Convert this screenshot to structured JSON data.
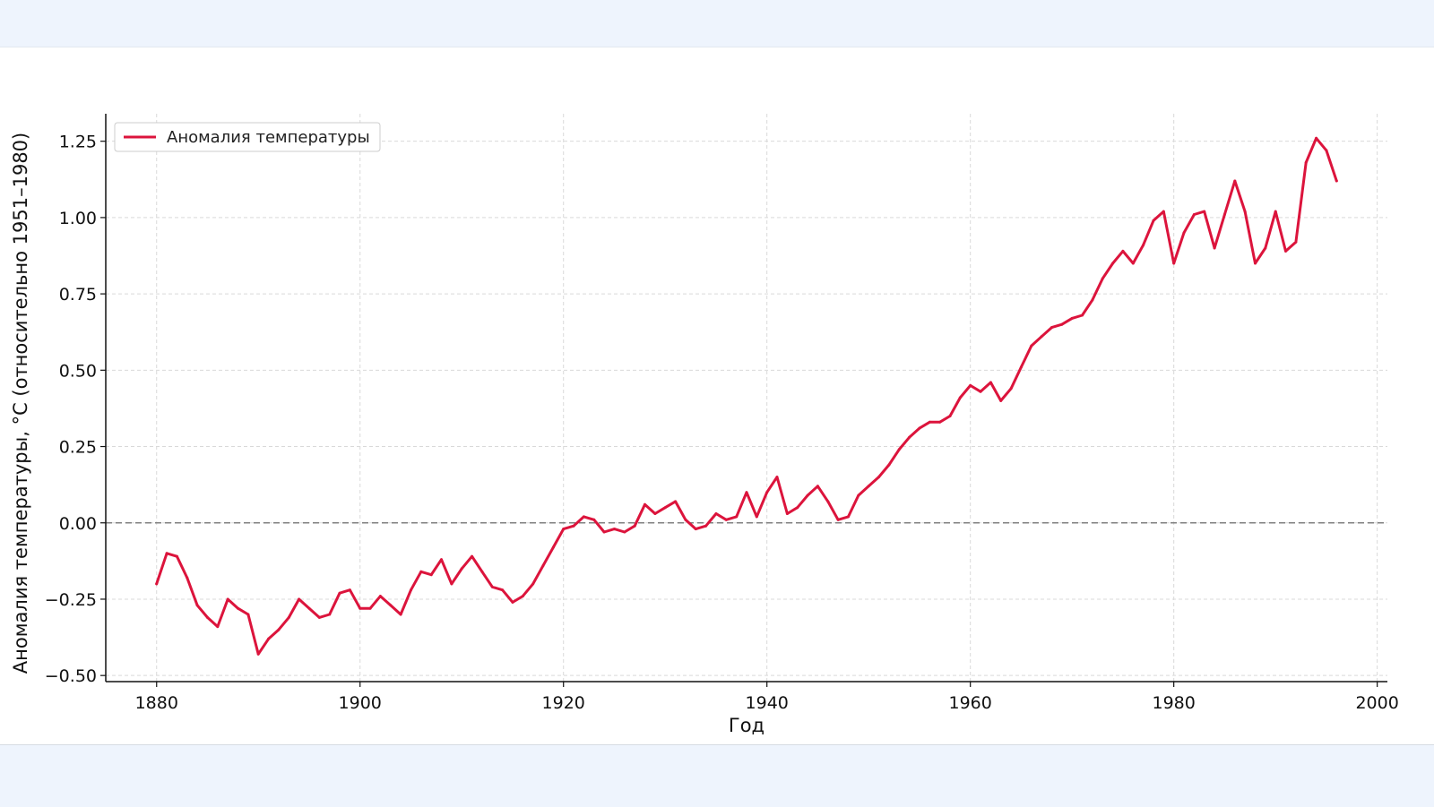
{
  "chart_data": {
    "type": "line",
    "xlabel": "Год",
    "ylabel": "Аномалия температуры, °C (относительно 1951–1980)",
    "xlim": [
      1875,
      2001
    ],
    "ylim": [
      -0.52,
      1.34
    ],
    "xticks": [
      1880,
      1900,
      1920,
      1940,
      1960,
      1980,
      2000
    ],
    "xtick_labels": [
      "1880",
      "1900",
      "1920",
      "1940",
      "1960",
      "1980",
      "2000"
    ],
    "yticks": [
      -0.5,
      -0.25,
      0,
      0.25,
      0.5,
      0.75,
      1.0,
      1.25
    ],
    "ytick_labels": [
      "−0.50",
      "−0.25",
      "0.00",
      "0.25",
      "0.50",
      "0.75",
      "1.00",
      "1.25"
    ],
    "grid": true,
    "zero_line": {
      "y": 0,
      "style": "dashed",
      "color": "#808080"
    },
    "legend": {
      "position": "top-left"
    },
    "series": [
      {
        "name": "Аномалия температуры",
        "color": "#dc143c",
        "x": [
          1880,
          1881,
          1882,
          1883,
          1884,
          1885,
          1886,
          1887,
          1888,
          1889,
          1890,
          1891,
          1892,
          1893,
          1894,
          1895,
          1896,
          1897,
          1898,
          1899,
          1900,
          1901,
          1902,
          1903,
          1904,
          1905,
          1906,
          1907,
          1908,
          1909,
          1910,
          1911,
          1912,
          1913,
          1914,
          1915,
          1916,
          1917,
          1918,
          1919,
          1920,
          1921,
          1922,
          1923,
          1924,
          1925,
          1926,
          1927,
          1928,
          1929,
          1930,
          1931,
          1932,
          1933,
          1934,
          1935,
          1936,
          1937,
          1938,
          1939,
          1940,
          1941,
          1942,
          1943,
          1944,
          1945,
          1946,
          1947,
          1948,
          1949,
          1950,
          1951,
          1952,
          1953,
          1954,
          1955,
          1956,
          1957,
          1958,
          1959,
          1960,
          1961,
          1962,
          1963,
          1964,
          1965,
          1966,
          1967,
          1968,
          1969,
          1970,
          1971,
          1972,
          1973,
          1974,
          1975,
          1976,
          1977,
          1978,
          1979,
          1980,
          1981,
          1982,
          1983,
          1984,
          1985,
          1986,
          1987,
          1988,
          1989,
          1990,
          1991,
          1992,
          1993,
          1994,
          1995,
          1996
        ],
        "y": [
          -0.2,
          -0.1,
          -0.11,
          -0.18,
          -0.27,
          -0.31,
          -0.34,
          -0.25,
          -0.28,
          -0.3,
          -0.43,
          -0.38,
          -0.35,
          -0.31,
          -0.25,
          -0.28,
          -0.31,
          -0.3,
          -0.23,
          -0.22,
          -0.28,
          -0.28,
          -0.24,
          -0.27,
          -0.3,
          -0.22,
          -0.16,
          -0.17,
          -0.12,
          -0.2,
          -0.15,
          -0.11,
          -0.16,
          -0.21,
          -0.22,
          -0.26,
          -0.24,
          -0.2,
          -0.14,
          -0.08,
          -0.02,
          -0.01,
          0.02,
          0.01,
          -0.03,
          -0.02,
          -0.03,
          -0.01,
          0.06,
          0.03,
          0.05,
          0.07,
          0.01,
          -0.02,
          -0.01,
          0.03,
          0.01,
          0.02,
          0.1,
          0.02,
          0.1,
          0.15,
          0.03,
          0.05,
          0.09,
          0.12,
          0.07,
          0.01,
          0.02,
          0.09,
          0.12,
          0.15,
          0.19,
          0.24,
          0.28,
          0.31,
          0.33,
          0.33,
          0.35,
          0.41,
          0.45,
          0.43,
          0.46,
          0.4,
          0.44,
          0.51,
          0.58,
          0.61,
          0.64,
          0.65,
          0.67,
          0.68,
          0.73,
          0.8,
          0.85,
          0.89,
          0.85,
          0.91,
          0.99,
          1.02,
          0.85,
          0.95,
          1.01,
          1.02,
          0.9,
          1.01,
          1.12,
          1.02,
          0.85,
          0.9,
          1.02,
          0.89,
          0.92,
          1.18,
          1.26,
          1.22,
          1.12
        ]
      }
    ]
  }
}
